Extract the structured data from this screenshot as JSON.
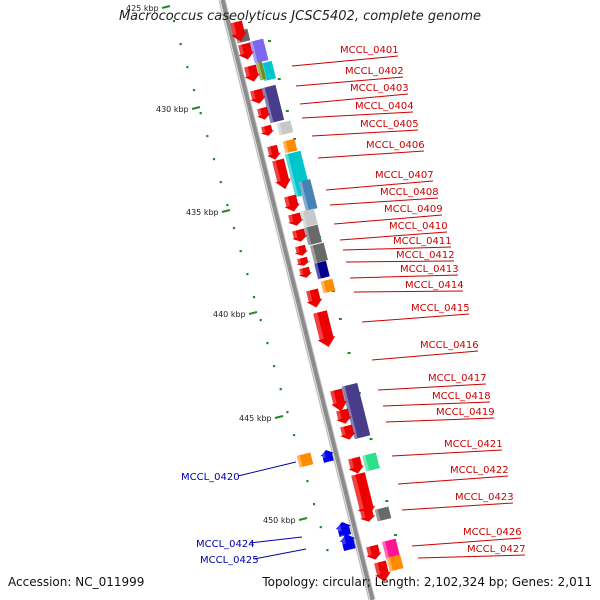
{
  "title": "Macrococcus caseolyticus JCSC5402, complete genome",
  "footer": {
    "accession": "Accession: NC_011999",
    "stats": "Topology: circular; Length: 2,102,324 bp; Genes: 2,011"
  },
  "colors": {
    "forward_label": "#cc0000",
    "reverse_label": "#0000aa",
    "gene_red": "#ee0000",
    "gene_blue": "#0000ee",
    "backbone": "#8c8c8c",
    "kbp_tick": "#228b22",
    "orange": "#ff8c00",
    "purple_dark": "#483d8b",
    "purple_light": "#7b68ee",
    "cyan": "#00c5cd",
    "steel": "#4682b4",
    "gray": "#696969",
    "lightgray": "#c8c8c8",
    "navy": "#00008b",
    "olive": "#6b8e23",
    "green": "#2fe08a",
    "pink": "#ff1493"
  },
  "kbp_markers": [
    "425 kbp",
    "430 kbp",
    "435 kbp",
    "440 kbp",
    "445 kbp",
    "450 kbp"
  ],
  "forward_genes": [
    "MCCL_0401",
    "MCCL_0402",
    "MCCL_0403",
    "MCCL_0404",
    "MCCL_0405",
    "MCCL_0406",
    "MCCL_0407",
    "MCCL_0408",
    "MCCL_0409",
    "MCCL_0410",
    "MCCL_0411",
    "MCCL_0412",
    "MCCL_0413",
    "MCCL_0414",
    "MCCL_0415",
    "MCCL_0416",
    "MCCL_0417",
    "MCCL_0418",
    "MCCL_0419",
    "MCCL_0421",
    "MCCL_0422",
    "MCCL_0423",
    "MCCL_0426",
    "MCCL_0427"
  ],
  "reverse_genes": [
    "MCCL_0420",
    "MCCL_0424",
    "MCCL_0425"
  ]
}
